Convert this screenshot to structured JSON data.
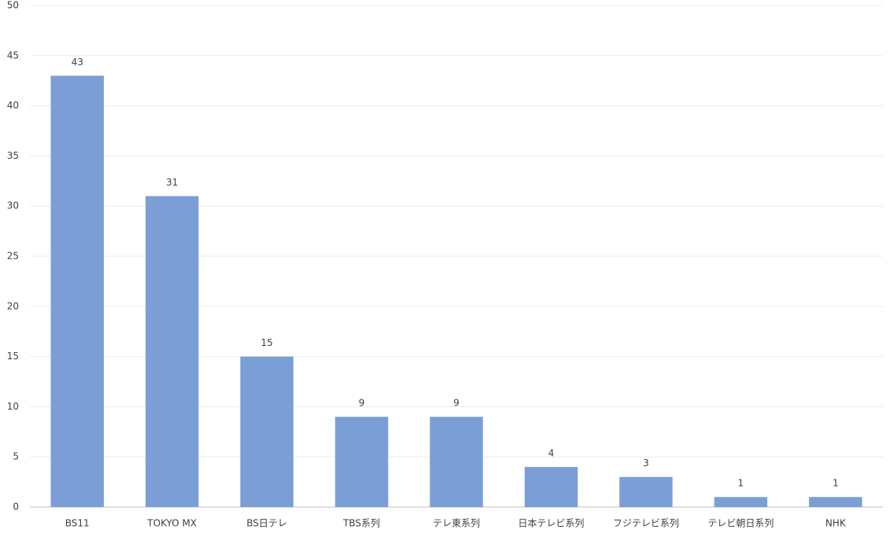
{
  "chart_data": {
    "type": "bar",
    "categories": [
      "BS11",
      "TOKYO MX",
      "BS日テレ",
      "TBS系列",
      "テレ東系列",
      "日本テレビ系列",
      "フジテレビ系列",
      "テレビ朝日系列",
      "NHK"
    ],
    "values": [
      43,
      31,
      15,
      9,
      9,
      4,
      3,
      1,
      1
    ],
    "color": "#7b9ed6",
    "ylim": [
      0,
      50
    ],
    "yticks": [
      0,
      5,
      10,
      15,
      20,
      25,
      30,
      35,
      40,
      45,
      50
    ],
    "grid": true,
    "data_labels": true
  }
}
